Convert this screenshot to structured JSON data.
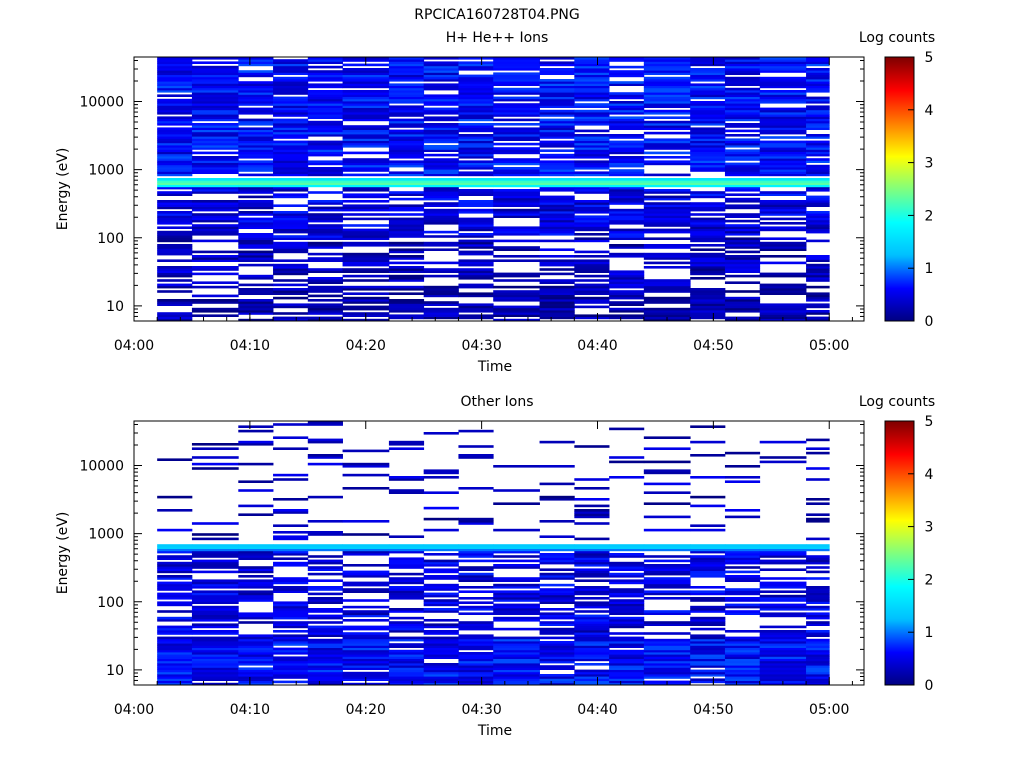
{
  "figure": {
    "title": "RPCICA160728T04.PNG"
  },
  "colorbar_scale": {
    "label": "Log counts",
    "min": 0,
    "max": 5,
    "ticks": [
      "0",
      "1",
      "2",
      "3",
      "4",
      "5"
    ],
    "colormap": [
      "#00007f",
      "#0000ff",
      "#00bfff",
      "#00ffff",
      "#7fff7f",
      "#ffff00",
      "#ff7f00",
      "#ff0000",
      "#7f0000"
    ]
  },
  "chart_data": [
    {
      "type": "heatmap",
      "title": "H+ He++ Ions",
      "xlabel": "Time",
      "ylabel": "Energy (eV)",
      "x_range": [
        "04:00",
        "05:03"
      ],
      "x_ticks": [
        "04:00",
        "04:10",
        "04:20",
        "04:30",
        "04:40",
        "04:50",
        "05:00"
      ],
      "y_scale": "log",
      "y_range": [
        6,
        45000
      ],
      "y_ticks": [
        "10",
        "100",
        "1000",
        "10000"
      ],
      "colorbar": {
        "label": "Log counts",
        "min": 0,
        "max": 5,
        "ticks": [
          "0",
          "1",
          "2",
          "3",
          "4",
          "5"
        ]
      },
      "time_columns": [
        "04:02",
        "04:05",
        "04:09",
        "04:12",
        "04:15",
        "04:18",
        "04:22",
        "04:25",
        "04:28",
        "04:31",
        "04:35",
        "04:38",
        "04:41",
        "04:44",
        "04:48",
        "04:51",
        "04:54",
        "04:58"
      ],
      "data_time_range": [
        "04:02",
        "05:00"
      ],
      "typical_level": 0.5,
      "fill_fraction": [
        {
          "e_min": 6,
          "e_max": 20,
          "fraction": 0.7,
          "level": 0.2
        },
        {
          "e_min": 20,
          "e_max": 100,
          "fraction": 0.55,
          "level": 0.3
        },
        {
          "e_min": 100,
          "e_max": 550,
          "fraction": 0.7,
          "level": 0.45
        },
        {
          "e_min": 800,
          "e_max": 45000,
          "fraction": 0.85,
          "level": 0.6
        }
      ],
      "bright_band": {
        "energy_min": 550,
        "energy_max": 750,
        "center_level": 2.5,
        "edge_level": 1.4
      }
    },
    {
      "type": "heatmap",
      "title": "Other Ions",
      "xlabel": "Time",
      "ylabel": "Energy (eV)",
      "x_range": [
        "04:00",
        "05:03"
      ],
      "x_ticks": [
        "04:00",
        "04:10",
        "04:20",
        "04:30",
        "04:40",
        "04:50",
        "05:00"
      ],
      "y_scale": "log",
      "y_range": [
        6,
        45000
      ],
      "y_ticks": [
        "10",
        "100",
        "1000",
        "10000"
      ],
      "colorbar": {
        "label": "Log counts",
        "min": 0,
        "max": 5,
        "ticks": [
          "0",
          "1",
          "2",
          "3",
          "4",
          "5"
        ]
      },
      "time_columns": [
        "04:02",
        "04:05",
        "04:09",
        "04:12",
        "04:15",
        "04:18",
        "04:22",
        "04:25",
        "04:28",
        "04:31",
        "04:35",
        "04:38",
        "04:41",
        "04:44",
        "04:48",
        "04:51",
        "04:54",
        "04:58"
      ],
      "data_time_range": [
        "04:02",
        "05:00"
      ],
      "typical_level": 0.5,
      "fill_fraction": [
        {
          "e_min": 6,
          "e_max": 28,
          "fraction": 0.9,
          "level": 0.6
        },
        {
          "e_min": 28,
          "e_max": 550,
          "fraction": 0.6,
          "level": 0.45
        },
        {
          "e_min": 800,
          "e_max": 45000,
          "fraction": 0.12,
          "level": 0.3
        }
      ],
      "bright_band": {
        "energy_min": 580,
        "energy_max": 720,
        "center_level": 1.6,
        "edge_level": 1.0
      }
    }
  ]
}
